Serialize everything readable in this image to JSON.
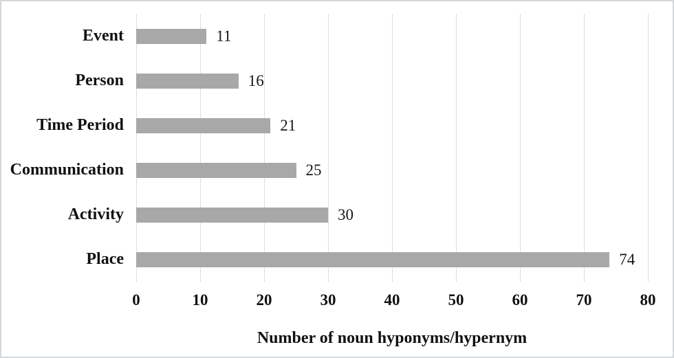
{
  "chart_data": {
    "type": "bar",
    "orientation": "horizontal",
    "categories": [
      "Event",
      "Person",
      "Time Period",
      "Communication",
      "Activity",
      "Place"
    ],
    "values": [
      11,
      16,
      21,
      25,
      30,
      74
    ],
    "data_labels": [
      "11",
      "16",
      "21",
      "25",
      "30",
      "74"
    ],
    "title": "",
    "xlabel": "Number of noun hyponyms/hypernym",
    "ylabel": "",
    "xlim": [
      0,
      80
    ],
    "xticks": [
      "0",
      "10",
      "20",
      "30",
      "40",
      "50",
      "60",
      "70",
      "80"
    ],
    "grid": "vertical-major-only",
    "legend": "none",
    "colors": {
      "bar_fill": "#a8a8a8",
      "gridline": "#dcdcdc",
      "text": "#111111",
      "figure_border": "#d4d7d9",
      "background": "#ffffff"
    }
  }
}
